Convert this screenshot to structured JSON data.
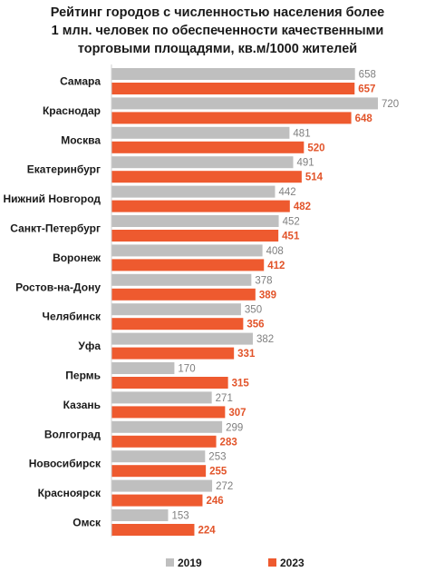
{
  "title_lines": [
    "Рейтинг городов с численностью населения более",
    "1 млн. человек по обеспеченности качественными",
    "торговыми площадями, кв.м/1000 жителей"
  ],
  "chart_data": {
    "type": "bar",
    "orientation": "horizontal",
    "title": "Рейтинг городов с численностью населения более 1 млн. человек по обеспеченности качественными торговыми площадями, кв.м/1000 жителей",
    "categories": [
      "Самара",
      "Краснодар",
      "Москва",
      "Екатеринбург",
      "Нижний Новгород",
      "Санкт-Петербург",
      "Воронеж",
      "Ростов-на-Дону",
      "Челябинск",
      "Уфа",
      "Пермь",
      "Казань",
      "Волгоград",
      "Новосибирск",
      "Красноярск",
      "Омск"
    ],
    "series": [
      {
        "name": "2019",
        "color": "#BFBFBF",
        "values": [
          658,
          720,
          481,
          491,
          442,
          452,
          408,
          378,
          350,
          382,
          170,
          271,
          299,
          253,
          272,
          153
        ]
      },
      {
        "name": "2023",
        "color": "#EE5A2F",
        "values": [
          657,
          648,
          520,
          514,
          482,
          451,
          412,
          389,
          356,
          331,
          315,
          307,
          283,
          255,
          246,
          224
        ]
      }
    ],
    "xlim": [
      0,
      720
    ],
    "grid": false,
    "legend_position": "bottom",
    "data_labels": true
  }
}
